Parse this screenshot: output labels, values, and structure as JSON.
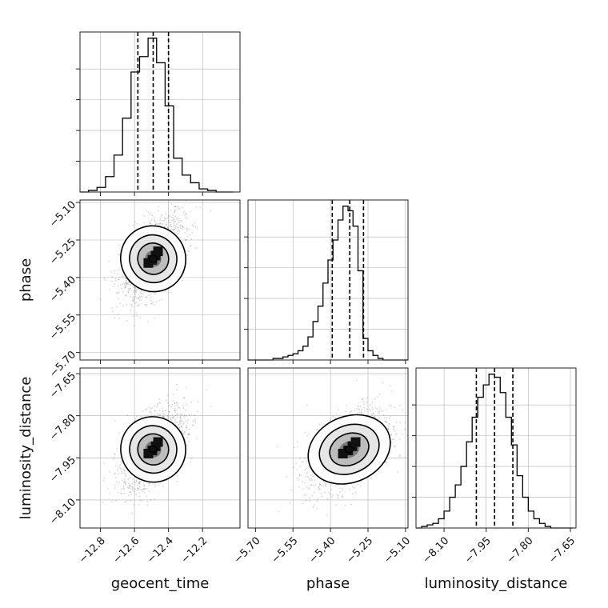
{
  "chart_data": {
    "type": "corner",
    "parameters": [
      "geocent_time",
      "phase",
      "luminosity_distance"
    ],
    "axis_labels": {
      "geocent_time": "geocent_time",
      "phase": "phase",
      "luminosity_distance": "luminosity_distance"
    },
    "ranges": {
      "geocent_time": [
        -12.92,
        -11.98
      ],
      "phase": [
        -5.73,
        -5.09
      ],
      "luminosity_distance": [
        -8.2,
        -7.63
      ]
    },
    "ticks": {
      "geocent_time": {
        "values": [
          -12.8,
          -12.6,
          -12.4,
          -12.2
        ],
        "labels": [
          "−12.8",
          "−12.6",
          "−12.4",
          "−12.2"
        ]
      },
      "phase": {
        "values": [
          -5.7,
          -5.55,
          -5.4,
          -5.25,
          -5.1
        ],
        "labels": [
          "−5.70",
          "−5.55",
          "−5.40",
          "−5.25",
          "−5.10"
        ]
      },
      "luminosity_distance": {
        "values": [
          -8.1,
          -7.95,
          -7.8,
          -7.65
        ],
        "labels": [
          "−8.10",
          "−7.95",
          "−7.80",
          "−7.65"
        ]
      }
    },
    "quantiles": {
      "geocent_time": [
        -12.58,
        -12.49,
        -12.4
      ],
      "phase": [
        -5.393,
        -5.323,
        -5.268
      ],
      "luminosity_distance": [
        -7.985,
        -7.92,
        -7.855
      ]
    },
    "histograms": {
      "geocent_time": {
        "edges": [
          -12.92,
          -12.87,
          -12.82,
          -12.77,
          -12.72,
          -12.67,
          -12.62,
          -12.57,
          -12.52,
          -12.47,
          -12.42,
          -12.37,
          -12.32,
          -12.27,
          -12.22,
          -12.17,
          -12.12,
          -12.07,
          -12.02
        ],
        "counts": [
          0,
          1,
          3,
          10,
          24,
          48,
          78,
          88,
          100,
          84,
          56,
          22,
          11,
          6,
          2,
          1,
          0,
          0
        ]
      },
      "phase": {
        "edges": [
          -5.73,
          -5.71,
          -5.69,
          -5.67,
          -5.65,
          -5.63,
          -5.61,
          -5.59,
          -5.57,
          -5.55,
          -5.53,
          -5.51,
          -5.49,
          -5.47,
          -5.45,
          -5.43,
          -5.41,
          -5.39,
          -5.37,
          -5.35,
          -5.33,
          -5.31,
          -5.29,
          -5.27,
          -5.25,
          -5.23,
          -5.21,
          -5.19,
          -5.17,
          -5.15,
          -5.13,
          -5.11,
          -5.09
        ],
        "counts": [
          0,
          0,
          0,
          0,
          0,
          1,
          1,
          2,
          3,
          4,
          6,
          9,
          15,
          25,
          35,
          50,
          65,
          78,
          91,
          100,
          97,
          87,
          58,
          14,
          6,
          3,
          1,
          0,
          0,
          0,
          0,
          0
        ]
      },
      "luminosity_distance": {
        "edges": [
          -8.2,
          -8.18,
          -8.16,
          -8.14,
          -8.12,
          -8.1,
          -8.08,
          -8.06,
          -8.04,
          -8.02,
          -8.0,
          -7.98,
          -7.96,
          -7.94,
          -7.92,
          -7.9,
          -7.88,
          -7.86,
          -7.84,
          -7.82,
          -7.8,
          -7.78,
          -7.76,
          -7.74,
          -7.72,
          -7.7,
          -7.68,
          -7.66,
          -7.64
        ],
        "counts": [
          0,
          1,
          2,
          3,
          6,
          11,
          20,
          28,
          40,
          56,
          72,
          85,
          93,
          100,
          98,
          88,
          72,
          54,
          34,
          20,
          11,
          6,
          3,
          1,
          0,
          0,
          0,
          0
        ]
      }
    },
    "pairs": [
      {
        "x": "geocent_time",
        "y": "phase",
        "mean": [
          -12.49,
          -5.325
        ],
        "std": [
          0.095,
          0.085
        ],
        "corr": 0.55
      },
      {
        "x": "geocent_time",
        "y": "luminosity_distance",
        "mean": [
          -12.49,
          -7.92
        ],
        "std": [
          0.095,
          0.075
        ],
        "corr": 0.55
      },
      {
        "x": "phase",
        "y": "luminosity_distance",
        "mean": [
          -5.325,
          -7.92
        ],
        "std": [
          0.085,
          0.075
        ],
        "corr": 0.5
      }
    ],
    "grid": true,
    "colors": {
      "line": "#000000",
      "grid": "#b0b0b0",
      "scatter": "#000000"
    }
  }
}
